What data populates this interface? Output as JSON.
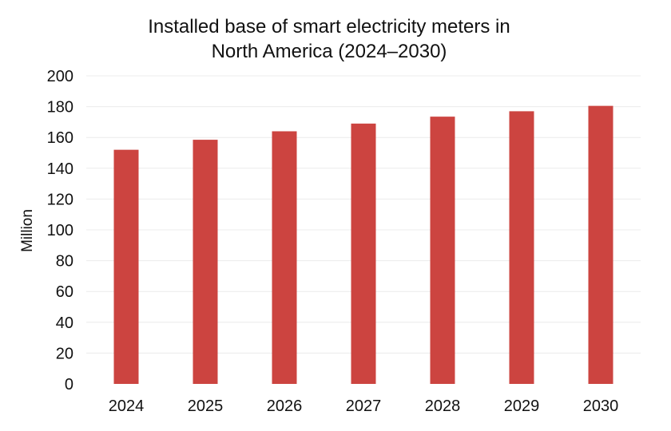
{
  "chart_data": {
    "type": "bar",
    "title_lines": [
      "Installed base of smart electricity meters in",
      "North America (2024–2030)"
    ],
    "title": "Installed base of smart electricity meters in North America (2024–2030)",
    "xlabel": "",
    "ylabel": "Million",
    "categories": [
      "2024",
      "2025",
      "2026",
      "2027",
      "2028",
      "2029",
      "2030"
    ],
    "values": [
      152,
      158.5,
      164,
      169,
      173.5,
      177,
      180.5
    ],
    "ylim": [
      0,
      200
    ],
    "yticks": [
      0,
      20,
      40,
      60,
      80,
      100,
      120,
      140,
      160,
      180,
      200
    ],
    "ytick_labels": [
      "0",
      "20",
      "40",
      "60",
      "80",
      "100",
      "120",
      "140",
      "160",
      "180",
      "200"
    ],
    "grid": true,
    "legend": "none",
    "colors": {
      "bar": "#cc4440",
      "grid": "#ececec",
      "text": "#111111"
    }
  }
}
